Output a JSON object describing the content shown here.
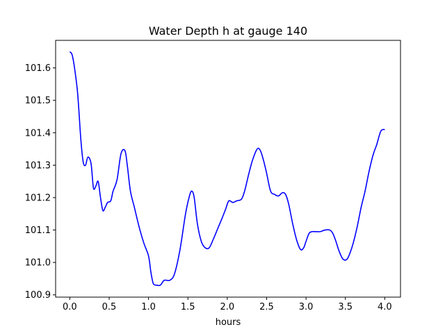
{
  "chart_data": {
    "type": "line",
    "title": "Water Depth h at gauge 140",
    "xlabel": "hours",
    "ylabel": "",
    "xlim": [
      -0.18,
      4.2
    ],
    "ylim": [
      100.893,
      101.685
    ],
    "xticks": [
      0.0,
      0.5,
      1.0,
      1.5,
      2.0,
      2.5,
      3.0,
      3.5,
      4.0
    ],
    "xtick_labels": [
      "0.0",
      "0.5",
      "1.0",
      "1.5",
      "2.0",
      "2.5",
      "3.0",
      "3.5",
      "4.0"
    ],
    "yticks": [
      100.9,
      101.0,
      101.1,
      101.2,
      101.3,
      101.4,
      101.5,
      101.6
    ],
    "ytick_labels": [
      "100.9",
      "101.0",
      "101.1",
      "101.2",
      "101.3",
      "101.4",
      "101.5",
      "101.6"
    ],
    "grid": false,
    "series": [
      {
        "color": "#0000ff",
        "x": [
          0.0,
          0.03,
          0.06,
          0.1,
          0.14,
          0.17,
          0.2,
          0.23,
          0.27,
          0.3,
          0.33,
          0.36,
          0.39,
          0.42,
          0.45,
          0.48,
          0.52,
          0.55,
          0.6,
          0.65,
          0.7,
          0.73,
          0.77,
          0.82,
          0.88,
          0.94,
          1.0,
          1.03,
          1.06,
          1.1,
          1.15,
          1.2,
          1.27,
          1.33,
          1.4,
          1.47,
          1.52,
          1.55,
          1.58,
          1.62,
          1.67,
          1.72,
          1.77,
          1.82,
          1.88,
          1.94,
          1.98,
          2.02,
          2.07,
          2.12,
          2.18,
          2.22,
          2.27,
          2.32,
          2.38,
          2.42,
          2.46,
          2.5,
          2.55,
          2.6,
          2.65,
          2.7,
          2.74,
          2.78,
          2.83,
          2.88,
          2.93,
          2.97,
          3.0,
          3.04,
          3.08,
          3.12,
          3.18,
          3.24,
          3.3,
          3.34,
          3.38,
          3.42,
          3.47,
          3.52,
          3.56,
          3.6,
          3.65,
          3.7,
          3.75,
          3.8,
          3.85,
          3.9,
          3.95,
          4.0
        ],
        "y": [
          101.65,
          101.64,
          101.6,
          101.52,
          101.38,
          101.31,
          101.3,
          101.325,
          101.305,
          101.23,
          101.235,
          101.25,
          101.2,
          101.16,
          101.17,
          101.185,
          101.19,
          101.22,
          101.255,
          101.335,
          101.345,
          101.3,
          101.22,
          101.17,
          101.11,
          101.06,
          101.02,
          100.97,
          100.935,
          100.93,
          100.93,
          100.945,
          100.945,
          100.965,
          101.04,
          101.15,
          101.205,
          101.22,
          101.2,
          101.12,
          101.065,
          101.045,
          101.045,
          101.07,
          101.105,
          101.14,
          101.165,
          101.19,
          101.185,
          101.19,
          101.195,
          101.22,
          101.27,
          101.315,
          101.35,
          101.345,
          101.315,
          101.275,
          101.22,
          101.21,
          101.205,
          101.215,
          101.21,
          101.18,
          101.12,
          101.07,
          101.04,
          101.045,
          101.065,
          101.09,
          101.095,
          101.095,
          101.095,
          101.1,
          101.1,
          101.09,
          101.065,
          101.035,
          101.01,
          101.01,
          101.03,
          101.06,
          101.11,
          101.17,
          101.22,
          101.28,
          101.33,
          101.365,
          101.405,
          101.41
        ]
      }
    ]
  }
}
